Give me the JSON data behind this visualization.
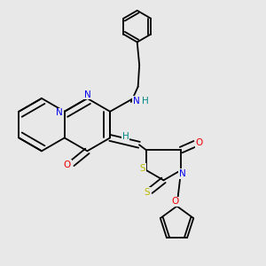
{
  "background_color": "#e8e8e8",
  "figure_size": [
    3.0,
    3.0
  ],
  "dpi": 100,
  "atom_colors": {
    "C": "#000000",
    "N": "#0000ee",
    "O": "#ee0000",
    "S": "#bbbb00",
    "H": "#008888"
  },
  "lw": 1.3,
  "fs": 7.5,
  "off": 0.011
}
